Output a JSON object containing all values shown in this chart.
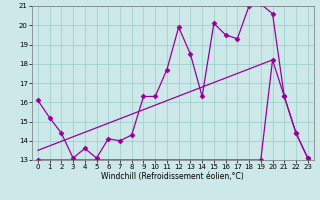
{
  "xlabel": "Windchill (Refroidissement éolien,°C)",
  "bg_color": "#cce8e8",
  "line_color": "#990099",
  "grid_color": "#99cccc",
  "xmin": -0.5,
  "xmax": 23.5,
  "ymin": 13,
  "ymax": 21,
  "line1_x": [
    0,
    1,
    2,
    3,
    4,
    5,
    6,
    7,
    8,
    9,
    10,
    11,
    12,
    13,
    14,
    15,
    16,
    17,
    18,
    19,
    20,
    21,
    22,
    23
  ],
  "line1_y": [
    16.1,
    15.2,
    14.4,
    13.1,
    13.6,
    13.1,
    14.1,
    14.0,
    14.3,
    16.3,
    16.3,
    17.7,
    19.9,
    18.5,
    16.3,
    20.1,
    19.5,
    19.3,
    21.0,
    21.1,
    20.6,
    16.3,
    14.4,
    13.1
  ],
  "line2_x": [
    0,
    19,
    20,
    21,
    22,
    23
  ],
  "line2_y": [
    13.0,
    13.0,
    18.2,
    16.3,
    14.4,
    13.1
  ],
  "line3_x": [
    0,
    20
  ],
  "line3_y": [
    13.5,
    18.2
  ],
  "yticks": [
    13,
    14,
    15,
    16,
    17,
    18,
    19,
    20,
    21
  ],
  "xticks": [
    0,
    1,
    2,
    3,
    4,
    5,
    6,
    7,
    8,
    9,
    10,
    11,
    12,
    13,
    14,
    15,
    16,
    17,
    18,
    19,
    20,
    21,
    22,
    23
  ],
  "tick_fontsize": 5,
  "label_fontsize": 5.5
}
